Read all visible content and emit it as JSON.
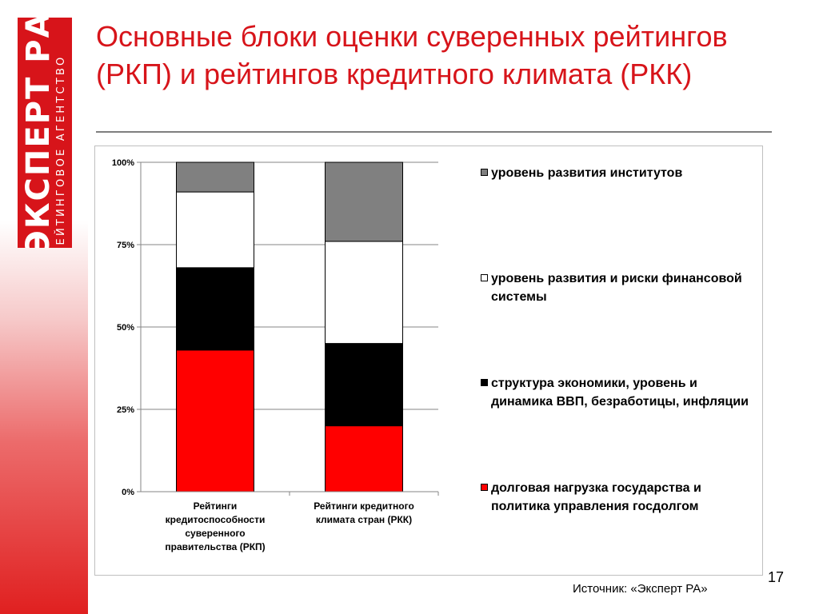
{
  "logo": {
    "main_text": "ЭКСПЕРТ РА",
    "sub_text": "РЕЙТИНГОВОЕ АГЕНТСТВО",
    "color": "#d7141a"
  },
  "slide": {
    "title": "Основные блоки оценки суверенных рейтингов (РКП) и рейтингов кредитного климата (РКК)",
    "page_number": "17",
    "source": "Источник: «Эксперт РА»"
  },
  "chart_data": {
    "type": "bar",
    "stacked": true,
    "percent": true,
    "categories": [
      "Рейтинги кредитоспособности суверенного правительства (РКП)",
      "Рейтинги кредитного климата стран (РКК)"
    ],
    "series": [
      {
        "name": "долговая нагрузка государства и политика управления госдолгом",
        "color": "#ff0000",
        "values": [
          43,
          20
        ]
      },
      {
        "name": "структура экономики, уровень и динамика ВВП, безработицы, инфляции",
        "color": "#000000",
        "values": [
          25,
          25
        ]
      },
      {
        "name": "уровень развития и риски финансовой системы",
        "color": "#ffffff",
        "values": [
          23,
          31
        ]
      },
      {
        "name": "уровень развития институтов",
        "color": "#808080",
        "values": [
          9,
          24
        ]
      }
    ],
    "ylim": [
      0,
      100
    ],
    "yticks": [
      "0%",
      "25%",
      "50%",
      "75%",
      "100%"
    ],
    "grid": true,
    "legend_position": "right",
    "legend_order": [
      3,
      2,
      1,
      0
    ]
  }
}
